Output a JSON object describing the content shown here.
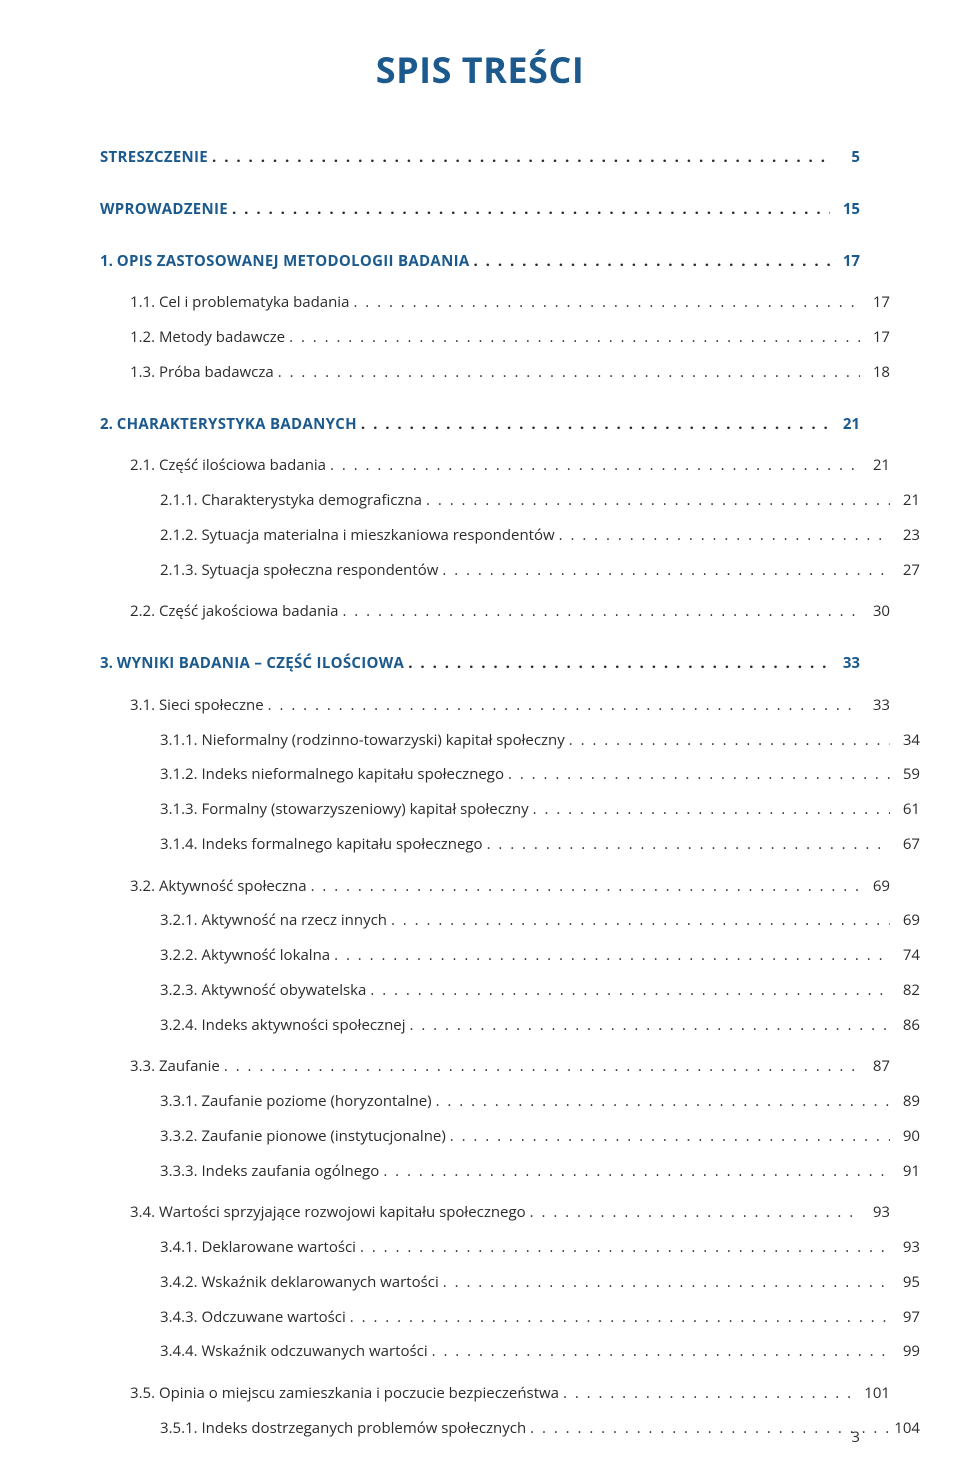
{
  "title": "SPIS TREŚCI",
  "colors": {
    "accent": "#1c5a8e",
    "text": "#2b2b2b",
    "background": "#ffffff"
  },
  "typography": {
    "title_fontsize": 36,
    "body_fontsize": 15,
    "title_weight": 700,
    "body_weight": 400
  },
  "page_number": "3",
  "entries": [
    {
      "level": 0,
      "heading": true,
      "num": "",
      "label": "STRESZCZENIE",
      "page": "5",
      "gap": "none"
    },
    {
      "level": 0,
      "heading": true,
      "num": "",
      "label": "WPROWADZENIE",
      "page": "15",
      "gap": "lg"
    },
    {
      "level": 0,
      "heading": true,
      "num": "1.",
      "label": "OPIS ZASTOSOWANEJ METODOLOGII BADANIA",
      "page": "17",
      "gap": "lg"
    },
    {
      "level": 1,
      "heading": false,
      "num": "1.1.",
      "label": "Cel i problematyka badania",
      "page": "17",
      "gap": "md"
    },
    {
      "level": 1,
      "heading": false,
      "num": "1.2.",
      "label": "Metody badawcze",
      "page": "17",
      "gap": "sm"
    },
    {
      "level": 1,
      "heading": false,
      "num": "1.3.",
      "label": "Próba badawcza",
      "page": "18",
      "gap": "sm"
    },
    {
      "level": 0,
      "heading": true,
      "num": "2.",
      "label": "CHARAKTERYSTYKA BADANYCH",
      "page": "21",
      "gap": "lg"
    },
    {
      "level": 1,
      "heading": false,
      "num": "2.1.",
      "label": "Część ilościowa badania",
      "page": "21",
      "gap": "md"
    },
    {
      "level": 2,
      "heading": false,
      "num": "2.1.1.",
      "label": "Charakterystyka demograficzna",
      "page": "21",
      "gap": "sm"
    },
    {
      "level": 2,
      "heading": false,
      "num": "2.1.2.",
      "label": "Sytuacja materialna i mieszkaniowa respondentów",
      "page": "23",
      "gap": "sm"
    },
    {
      "level": 2,
      "heading": false,
      "num": "2.1.3.",
      "label": "Sytuacja społeczna respondentów",
      "page": "27",
      "gap": "sm"
    },
    {
      "level": 1,
      "heading": false,
      "num": "2.2.",
      "label": "Część jakościowa badania",
      "page": "30",
      "gap": "md"
    },
    {
      "level": 0,
      "heading": true,
      "num": "3.",
      "label": "WYNIKI BADANIA – CZĘŚĆ ILOŚCIOWA",
      "page": "33",
      "gap": "lg"
    },
    {
      "level": 1,
      "heading": false,
      "num": "3.1.",
      "label": "Sieci społeczne",
      "page": "33",
      "gap": "md"
    },
    {
      "level": 2,
      "heading": false,
      "num": "3.1.1.",
      "label": "Nieformalny (rodzinno-towarzyski) kapitał społeczny",
      "page": "34",
      "gap": "sm"
    },
    {
      "level": 2,
      "heading": false,
      "num": "3.1.2.",
      "label": "Indeks nieformalnego kapitału społecznego",
      "page": "59",
      "gap": "sm"
    },
    {
      "level": 2,
      "heading": false,
      "num": "3.1.3.",
      "label": "Formalny (stowarzyszeniowy) kapitał społeczny",
      "page": "61",
      "gap": "sm"
    },
    {
      "level": 2,
      "heading": false,
      "num": "3.1.4.",
      "label": "Indeks formalnego kapitału społecznego",
      "page": "67",
      "gap": "sm"
    },
    {
      "level": 1,
      "heading": false,
      "num": "3.2.",
      "label": "Aktywność społeczna",
      "page": "69",
      "gap": "md"
    },
    {
      "level": 2,
      "heading": false,
      "num": "3.2.1.",
      "label": "Aktywność na rzecz innych",
      "page": "69",
      "gap": "sm"
    },
    {
      "level": 2,
      "heading": false,
      "num": "3.2.2.",
      "label": "Aktywność lokalna",
      "page": "74",
      "gap": "sm"
    },
    {
      "level": 2,
      "heading": false,
      "num": "3.2.3.",
      "label": "Aktywność obywatelska",
      "page": "82",
      "gap": "sm"
    },
    {
      "level": 2,
      "heading": false,
      "num": "3.2.4.",
      "label": "Indeks aktywności społecznej",
      "page": "86",
      "gap": "sm"
    },
    {
      "level": 1,
      "heading": false,
      "num": "3.3.",
      "label": "Zaufanie",
      "page": "87",
      "gap": "md"
    },
    {
      "level": 2,
      "heading": false,
      "num": "3.3.1.",
      "label": "Zaufanie poziome (horyzontalne)",
      "page": "89",
      "gap": "sm"
    },
    {
      "level": 2,
      "heading": false,
      "num": "3.3.2.",
      "label": "Zaufanie pionowe (instytucjonalne)",
      "page": "90",
      "gap": "sm"
    },
    {
      "level": 2,
      "heading": false,
      "num": "3.3.3.",
      "label": "Indeks zaufania ogólnego",
      "page": "91",
      "gap": "sm"
    },
    {
      "level": 1,
      "heading": false,
      "num": "3.4.",
      "label": "Wartości sprzyjające rozwojowi kapitału społecznego",
      "page": "93",
      "gap": "md"
    },
    {
      "level": 2,
      "heading": false,
      "num": "3.4.1.",
      "label": "Deklarowane wartości",
      "page": "93",
      "gap": "sm"
    },
    {
      "level": 2,
      "heading": false,
      "num": "3.4.2.",
      "label": "Wskaźnik deklarowanych wartości",
      "page": "95",
      "gap": "sm"
    },
    {
      "level": 2,
      "heading": false,
      "num": "3.4.3.",
      "label": "Odczuwane wartości",
      "page": "97",
      "gap": "sm"
    },
    {
      "level": 2,
      "heading": false,
      "num": "3.4.4.",
      "label": "Wskaźnik odczuwanych wartości",
      "page": "99",
      "gap": "sm"
    },
    {
      "level": 1,
      "heading": false,
      "num": "3.5.",
      "label": "Opinia o miejscu zamieszkania i poczucie bezpieczeństwa",
      "page": "101",
      "gap": "md"
    },
    {
      "level": 2,
      "heading": false,
      "num": "3.5.1.",
      "label": "Indeks dostrzeganych problemów społecznych",
      "page": "104",
      "gap": "sm"
    }
  ]
}
